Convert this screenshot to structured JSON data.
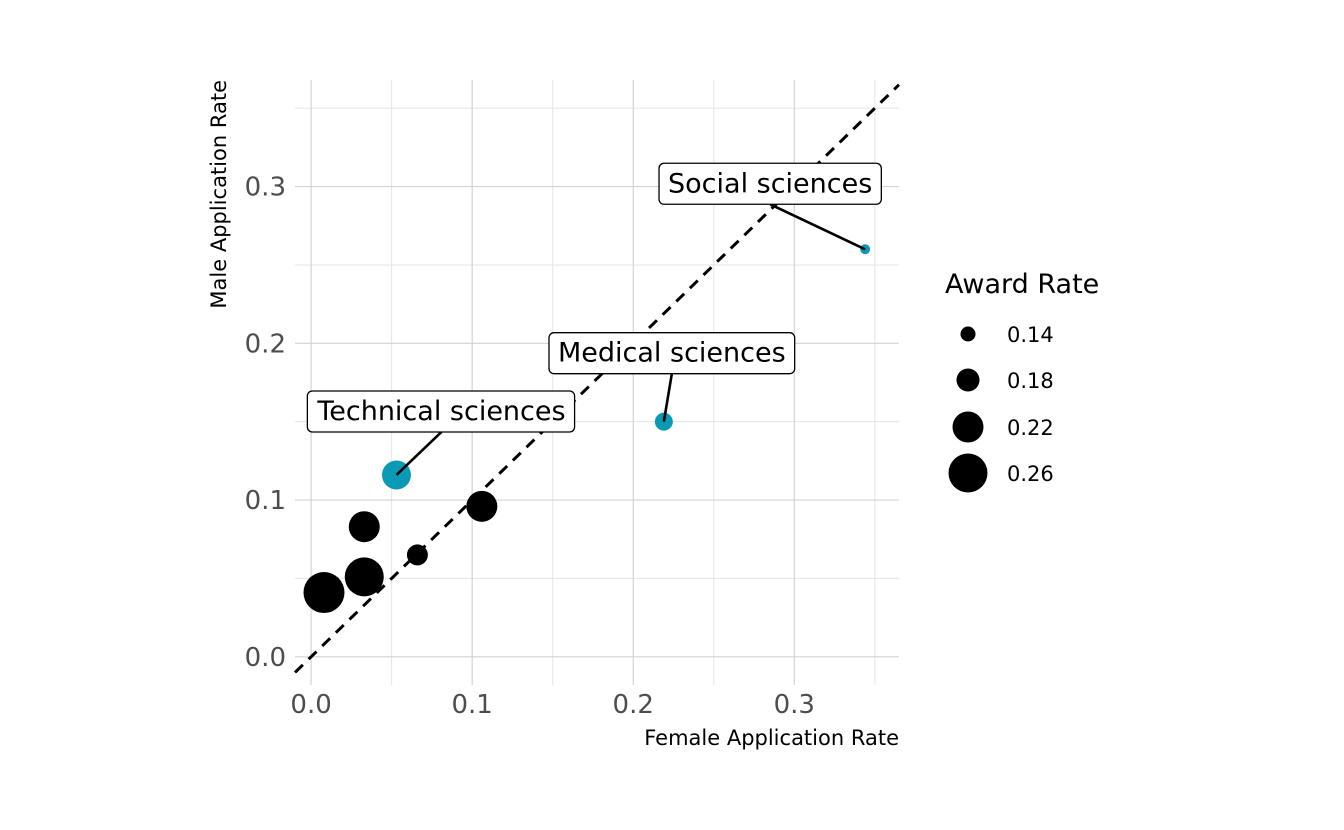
{
  "chart_data": {
    "type": "scatter",
    "xlabel": "Female Application Rate",
    "ylabel": "Male Application Rate",
    "xlim": [
      -0.01,
      0.365
    ],
    "ylim": [
      -0.018,
      0.368
    ],
    "x_ticks": [
      0.0,
      0.1,
      0.2,
      0.3
    ],
    "x_tick_labels": [
      "0.0",
      "0.1",
      "0.2",
      "0.3"
    ],
    "y_ticks": [
      0.0,
      0.1,
      0.2,
      0.3
    ],
    "y_tick_labels": [
      "0.0",
      "0.1",
      "0.2",
      "0.3"
    ],
    "grid": true,
    "reference_line": {
      "slope": 1,
      "intercept": 0,
      "style": "dashed"
    },
    "points": [
      {
        "x": 0.008,
        "y": 0.041,
        "award_rate": 0.27,
        "highlight": false
      },
      {
        "x": 0.033,
        "y": 0.051,
        "award_rate": 0.26,
        "highlight": false
      },
      {
        "x": 0.033,
        "y": 0.083,
        "award_rate": 0.22,
        "highlight": false
      },
      {
        "x": 0.066,
        "y": 0.065,
        "award_rate": 0.17,
        "highlight": false
      },
      {
        "x": 0.106,
        "y": 0.096,
        "award_rate": 0.22,
        "highlight": false
      },
      {
        "x": 0.053,
        "y": 0.116,
        "award_rate": 0.21,
        "highlight": true
      },
      {
        "x": 0.219,
        "y": 0.15,
        "award_rate": 0.155,
        "highlight": true
      },
      {
        "x": 0.344,
        "y": 0.26,
        "award_rate": 0.115,
        "highlight": true
      }
    ],
    "annotations": [
      {
        "label": "Technical sciences",
        "point_index": 5
      },
      {
        "label": "Medical sciences",
        "point_index": 6
      },
      {
        "label": "Social sciences",
        "point_index": 7
      }
    ],
    "legend": {
      "title": "Award Rate",
      "position": "right",
      "entries": [
        {
          "label": "0.14",
          "value": 0.14
        },
        {
          "label": "0.18",
          "value": 0.18
        },
        {
          "label": "0.22",
          "value": 0.22
        },
        {
          "label": "0.26",
          "value": 0.26
        }
      ]
    },
    "colors": {
      "default_point": "#000000",
      "highlight_point": "#0a9ab5",
      "grid_major": "#d3d3d3",
      "grid_minor": "#e5e5e5"
    }
  }
}
